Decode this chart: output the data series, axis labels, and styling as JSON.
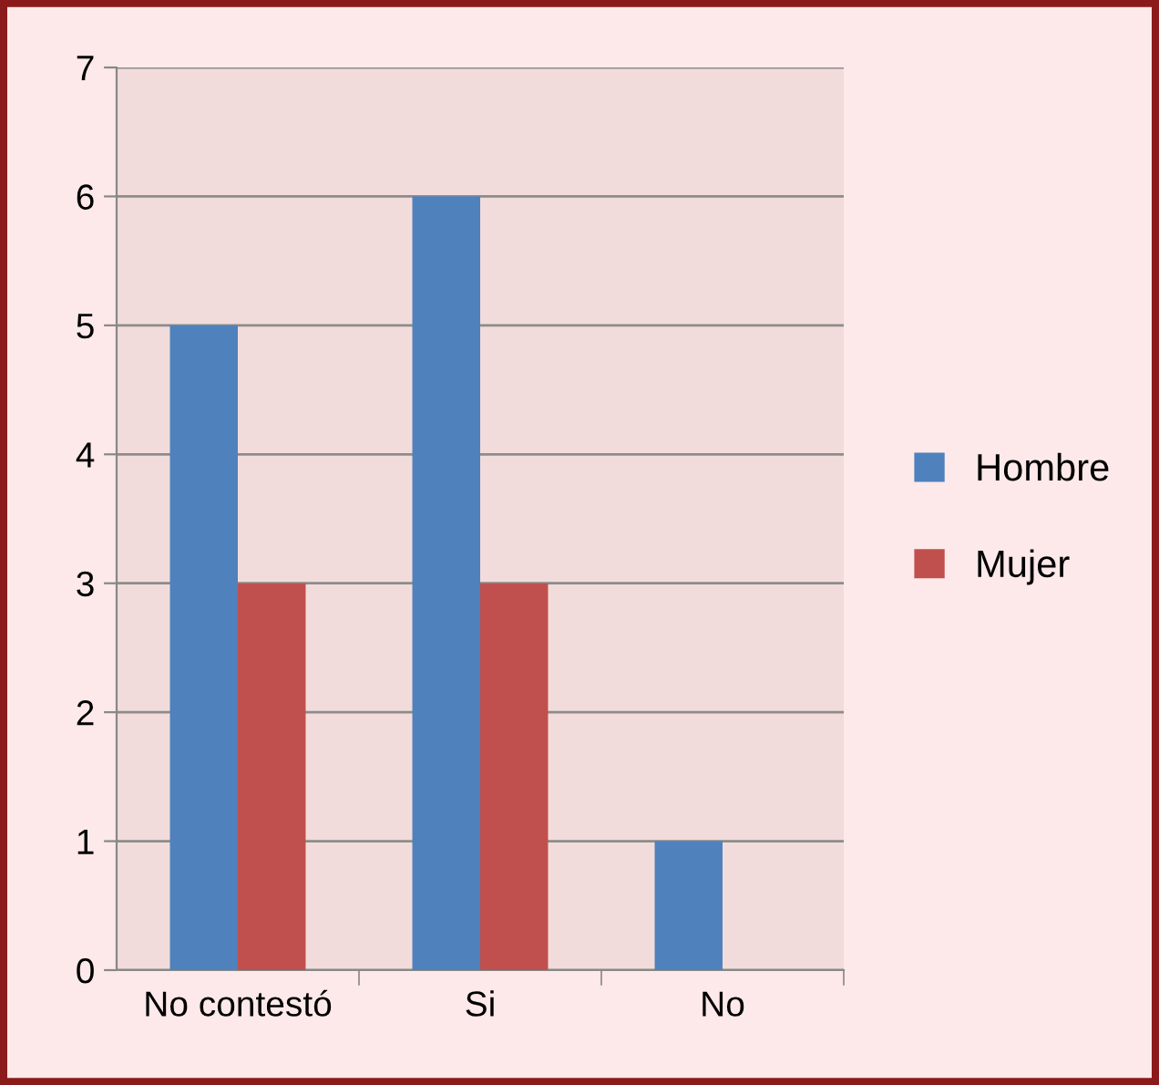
{
  "chart_data": {
    "type": "bar",
    "categories": [
      "No contestó",
      "Si",
      "No"
    ],
    "series": [
      {
        "name": "Hombre",
        "color": "#4f81bd",
        "values": [
          5,
          6,
          1
        ]
      },
      {
        "name": "Mujer",
        "color": "#c0504d",
        "values": [
          3,
          3,
          0
        ]
      }
    ],
    "ylim": [
      0,
      7
    ],
    "yticks": [
      0,
      1,
      2,
      3,
      4,
      5,
      6,
      7
    ],
    "grid": "y",
    "legend": "right"
  }
}
